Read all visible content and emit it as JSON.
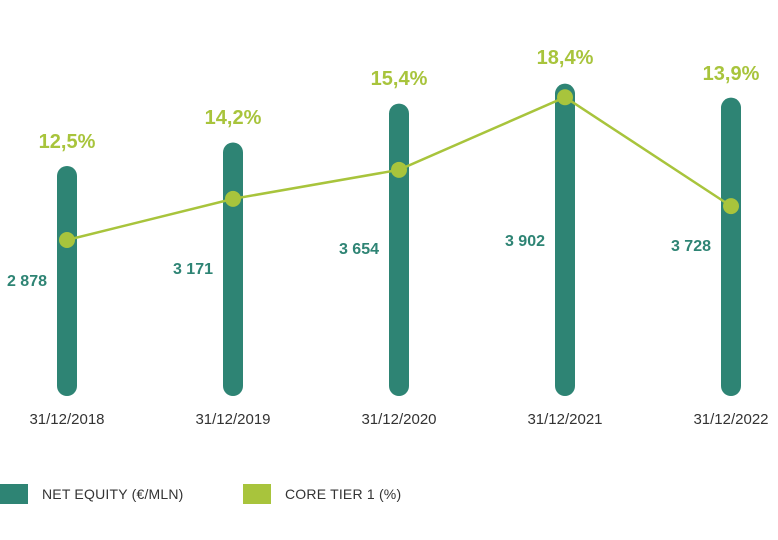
{
  "colors": {
    "equity": "#2e8474",
    "core_tier": "#a8c43c",
    "dates": "#333333"
  },
  "chart_data": {
    "type": "bar+line",
    "categories": [
      "31/12/2018",
      "31/12/2019",
      "31/12/2020",
      "31/12/2021",
      "31/12/2022"
    ],
    "series": [
      {
        "name": "NET EQUITY (€/MLN)",
        "type": "bar",
        "values": [
          2878,
          3171,
          3654,
          3902,
          3728
        ],
        "labels": [
          "2 878",
          "3 171",
          "3 654",
          "3 902",
          "3 728"
        ]
      },
      {
        "name": "CORE TIER 1 (%)",
        "type": "line",
        "values": [
          12.5,
          14.2,
          15.4,
          18.4,
          13.9
        ],
        "labels": [
          "12,5%",
          "14,2%",
          "15,4%",
          "18,4%",
          "13,9%"
        ]
      }
    ],
    "grid": false,
    "legend_position": "bottom-left"
  },
  "legend": {
    "equity_label": "NET EQUITY (€/MLN)",
    "core_tier_label": "CORE TIER 1 (%)"
  }
}
